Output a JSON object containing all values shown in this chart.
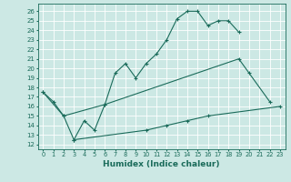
{
  "xlabel": "Humidex (Indice chaleur)",
  "bg_color": "#cce8e4",
  "line_color": "#1a6b5a",
  "grid_color": "#ffffff",
  "xlim": [
    -0.5,
    23.5
  ],
  "ylim": [
    11.5,
    26.8
  ],
  "yticks": [
    12,
    13,
    14,
    15,
    16,
    17,
    18,
    19,
    20,
    21,
    22,
    23,
    24,
    25,
    26
  ],
  "xticks": [
    0,
    1,
    2,
    3,
    4,
    5,
    6,
    7,
    8,
    9,
    10,
    11,
    12,
    13,
    14,
    15,
    16,
    17,
    18,
    19,
    20,
    21,
    22,
    23
  ],
  "series": {
    "top": [
      [
        0,
        17.5
      ],
      [
        1,
        16.5
      ],
      [
        2,
        15.0
      ],
      [
        3,
        12.5
      ],
      [
        4,
        14.5
      ],
      [
        5,
        13.5
      ],
      [
        6,
        16.2
      ],
      [
        7,
        19.5
      ],
      [
        8,
        20.5
      ],
      [
        9,
        19.0
      ],
      [
        10,
        20.5
      ],
      [
        11,
        21.5
      ],
      [
        12,
        23.0
      ],
      [
        13,
        25.2
      ],
      [
        14,
        26.0
      ],
      [
        15,
        26.0
      ],
      [
        16,
        24.5
      ],
      [
        17,
        25.0
      ],
      [
        18,
        25.0
      ],
      [
        19,
        23.8
      ]
    ],
    "mid": [
      [
        0,
        17.5
      ],
      [
        2,
        15.0
      ],
      [
        6,
        16.2
      ],
      [
        19,
        21.0
      ],
      [
        20,
        19.5
      ],
      [
        22,
        16.5
      ]
    ],
    "bot": [
      [
        3,
        12.5
      ],
      [
        10,
        13.5
      ],
      [
        12,
        14.0
      ],
      [
        14,
        14.5
      ],
      [
        16,
        15.0
      ],
      [
        23,
        16.0
      ]
    ]
  }
}
